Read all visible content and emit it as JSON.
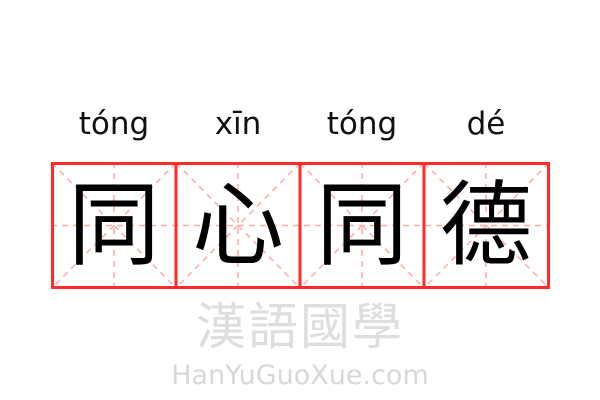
{
  "pinyin": [
    "tóng",
    "xīn",
    "tóng",
    "dé"
  ],
  "characters": [
    "同",
    "心",
    "同",
    "德"
  ],
  "watermark": {
    "chinese": "漢語國學",
    "latin": "HanYuGuoXue.com"
  },
  "colors": {
    "grid_border": "#ff2a2a",
    "guide_lines": "#ffaaaa",
    "text": "#000000"
  }
}
